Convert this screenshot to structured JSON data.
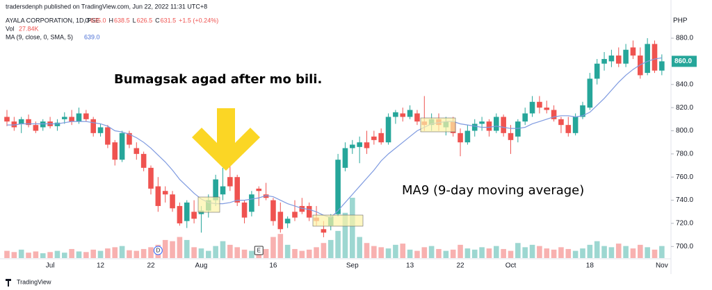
{
  "chart_data": {
    "type": "candlestick",
    "header": {
      "publisher": "tradersdenph published on TradingView.com, Jun 22, 2022 11:31 UTC+8",
      "symbol": "AYALA CORPORATION, 1D, PSE",
      "ohlc": [
        {
          "key": "O",
          "value": "635.0"
        },
        {
          "key": "H",
          "value": "638.5"
        },
        {
          "key": "L",
          "value": "626.5"
        },
        {
          "key": "C",
          "value": "631.5"
        }
      ],
      "change": "+1.5 (+0.24%)",
      "volume_label": "Vol",
      "volume_value": "27.84K",
      "ma_label": "MA (9, close, 0, SMA, 5)",
      "ma_value": "639.0"
    },
    "currency": "PHP",
    "footer": "TradingView",
    "annotations": [
      "Bumagsak agad after mo bili.",
      "MA9 (9-day moving average)"
    ],
    "events": [
      {
        "index": 21,
        "label": "D"
      },
      {
        "index": 35,
        "label": "E"
      }
    ],
    "last_price": {
      "value": 860,
      "label": "860.0"
    },
    "up_color": "#26a69a",
    "down_color": "#ef5350",
    "ma_color": "#7e9ae0",
    "categories": [
      null,
      null,
      null,
      null,
      null,
      null,
      "Jul",
      null,
      null,
      null,
      null,
      null,
      null,
      "12",
      null,
      null,
      null,
      null,
      null,
      null,
      "22",
      null,
      null,
      null,
      null,
      null,
      null,
      "Aug",
      null,
      null,
      null,
      null,
      null,
      null,
      null,
      null,
      null,
      "16",
      null,
      null,
      null,
      null,
      null,
      null,
      null,
      null,
      null,
      null,
      "Sep",
      null,
      null,
      null,
      null,
      null,
      null,
      null,
      "13",
      null,
      null,
      null,
      null,
      null,
      null,
      "22",
      null,
      null,
      null,
      null,
      null,
      null,
      "Oct",
      null,
      null,
      null,
      null,
      null,
      null,
      null,
      null,
      null,
      null,
      "18",
      null,
      null,
      null,
      null,
      null,
      null,
      null,
      null,
      null,
      "Nov"
    ],
    "ohlc": [
      [
        812,
        818,
        804,
        808
      ],
      [
        808,
        812,
        800,
        803
      ],
      [
        806,
        812,
        798,
        810
      ],
      [
        810,
        814,
        803,
        805
      ],
      [
        805,
        808,
        798,
        800
      ],
      [
        803,
        810,
        800,
        808
      ],
      [
        808,
        812,
        802,
        804
      ],
      [
        804,
        810,
        800,
        807
      ],
      [
        810,
        816,
        806,
        812
      ],
      [
        812,
        818,
        805,
        808
      ],
      [
        808,
        820,
        806,
        815
      ],
      [
        815,
        818,
        808,
        810
      ],
      [
        810,
        812,
        795,
        798
      ],
      [
        798,
        806,
        795,
        803
      ],
      [
        803,
        805,
        785,
        788
      ],
      [
        790,
        792,
        770,
        775
      ],
      [
        775,
        800,
        773,
        798
      ],
      [
        798,
        800,
        785,
        788
      ],
      [
        785,
        790,
        775,
        780
      ],
      [
        780,
        782,
        765,
        768
      ],
      [
        768,
        770,
        745,
        750
      ],
      [
        752,
        760,
        730,
        735
      ],
      [
        748,
        752,
        738,
        745
      ],
      [
        745,
        748,
        730,
        733
      ],
      [
        735,
        738,
        718,
        720
      ],
      [
        722,
        740,
        716,
        738
      ],
      [
        730,
        740,
        720,
        724
      ],
      [
        728,
        735,
        712,
        731
      ],
      [
        731,
        745,
        725,
        740
      ],
      [
        740,
        762,
        735,
        758
      ],
      [
        745,
        768,
        740,
        752
      ],
      [
        760,
        770,
        748,
        752
      ],
      [
        760,
        762,
        735,
        738
      ],
      [
        738,
        740,
        720,
        725
      ],
      [
        730,
        748,
        726,
        745
      ],
      [
        750,
        752,
        735,
        748
      ],
      [
        745,
        755,
        740,
        742
      ],
      [
        740,
        742,
        718,
        722
      ],
      [
        730,
        738,
        712,
        715
      ],
      [
        720,
        726,
        716,
        724
      ],
      [
        730,
        740,
        722,
        725
      ],
      [
        735,
        742,
        728,
        730
      ],
      [
        735,
        738,
        722,
        725
      ],
      [
        725,
        735,
        718,
        722
      ],
      [
        715,
        722,
        708,
        712
      ],
      [
        718,
        728,
        714,
        726
      ],
      [
        728,
        780,
        726,
        775
      ],
      [
        768,
        790,
        765,
        785
      ],
      [
        785,
        792,
        780,
        788
      ],
      [
        786,
        795,
        772,
        790
      ],
      [
        790,
        800,
        780,
        785
      ],
      [
        795,
        800,
        788,
        792
      ],
      [
        798,
        802,
        788,
        790
      ],
      [
        790,
        815,
        788,
        812
      ],
      [
        812,
        818,
        806,
        816
      ],
      [
        815,
        820,
        808,
        812
      ],
      [
        812,
        822,
        810,
        818
      ],
      [
        815,
        818,
        805,
        808
      ],
      [
        808,
        830,
        800,
        805
      ],
      [
        805,
        815,
        800,
        810
      ],
      [
        810,
        815,
        800,
        805
      ],
      [
        803,
        812,
        796,
        808
      ],
      [
        808,
        812,
        795,
        798
      ],
      [
        798,
        802,
        778,
        790
      ],
      [
        790,
        805,
        788,
        800
      ],
      [
        800,
        810,
        795,
        806
      ],
      [
        806,
        812,
        800,
        808
      ],
      [
        808,
        810,
        795,
        800
      ],
      [
        800,
        815,
        798,
        812
      ],
      [
        812,
        814,
        795,
        798
      ],
      [
        798,
        805,
        780,
        792
      ],
      [
        795,
        810,
        790,
        808
      ],
      [
        808,
        820,
        805,
        815
      ],
      [
        815,
        830,
        812,
        825
      ],
      [
        825,
        830,
        815,
        820
      ],
      [
        820,
        826,
        815,
        818
      ],
      [
        818,
        822,
        808,
        810
      ],
      [
        810,
        812,
        798,
        805
      ],
      [
        805,
        812,
        795,
        798
      ],
      [
        798,
        815,
        796,
        812
      ],
      [
        812,
        825,
        810,
        822
      ],
      [
        820,
        850,
        818,
        845
      ],
      [
        845,
        862,
        840,
        858
      ],
      [
        858,
        868,
        852,
        862
      ],
      [
        860,
        870,
        855,
        865
      ],
      [
        865,
        872,
        855,
        858
      ],
      [
        858,
        875,
        855,
        870
      ],
      [
        872,
        878,
        862,
        865
      ],
      [
        865,
        872,
        845,
        848
      ],
      [
        850,
        880,
        848,
        875
      ],
      [
        875,
        878,
        850,
        852
      ],
      [
        852,
        866,
        848,
        860
      ]
    ],
    "ma": [
      805,
      805,
      806,
      806,
      806,
      806,
      806,
      806,
      807,
      808,
      808,
      808,
      807,
      806,
      804,
      800,
      799,
      797,
      794,
      790,
      785,
      779,
      773,
      766,
      758,
      752,
      746,
      741,
      738,
      737,
      737,
      738,
      740,
      740,
      741,
      742,
      744,
      743,
      740,
      737,
      735,
      733,
      732,
      730,
      727,
      725,
      731,
      738,
      745,
      752,
      759,
      766,
      774,
      780,
      785,
      790,
      795,
      800,
      803,
      806,
      807,
      808,
      808,
      806,
      805,
      804,
      803,
      803,
      804,
      803,
      802,
      802,
      803,
      806,
      808,
      810,
      812,
      813,
      813,
      812,
      813,
      816,
      822,
      828,
      835,
      842,
      848,
      853,
      857,
      860,
      862,
      863
    ],
    "volume": [
      12,
      10,
      14,
      9,
      11,
      8,
      10,
      12,
      9,
      15,
      11,
      10,
      14,
      12,
      16,
      18,
      20,
      13,
      12,
      15,
      18,
      22,
      30,
      28,
      35,
      30,
      18,
      16,
      12,
      20,
      28,
      22,
      18,
      14,
      12,
      10,
      15,
      35,
      40,
      22,
      15,
      12,
      14,
      18,
      25,
      30,
      45,
      75,
      100,
      35,
      25,
      20,
      18,
      16,
      22,
      24,
      14,
      12,
      18,
      20,
      15,
      12,
      14,
      22,
      16,
      14,
      18,
      16,
      20,
      15,
      12,
      25,
      18,
      22,
      20,
      16,
      14,
      18,
      15,
      12,
      16,
      22,
      28,
      20,
      18,
      24,
      20,
      16,
      22,
      18,
      14,
      20
    ],
    "vlim": [
      0,
      100
    ],
    "ylim": [
      690,
      901
    ],
    "yticks": [
      {
        "value": 700,
        "label": "700.0"
      },
      {
        "value": 720,
        "label": "720.0"
      },
      {
        "value": 740,
        "label": "740.0"
      },
      {
        "value": 760,
        "label": "760.0"
      },
      {
        "value": 780,
        "label": "780.0"
      },
      {
        "value": 800,
        "label": "800.0"
      },
      {
        "value": 820,
        "label": "820.0"
      },
      {
        "value": 840,
        "label": "840.0"
      },
      {
        "value": 880,
        "label": "880.0"
      }
    ],
    "grid": false
  }
}
